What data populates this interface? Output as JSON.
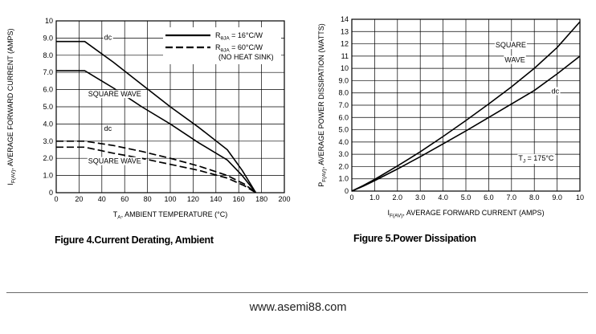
{
  "figures": [
    {
      "caption": "Figure 4.Current  Derating, Ambient"
    },
    {
      "caption": "Figure 5.Power  Dissipation"
    }
  ],
  "footer": {
    "text": "www.asemi88.com"
  },
  "chart_data": [
    {
      "type": "line",
      "title": "",
      "xlabel_main": "T",
      "xlabel_sub": "A",
      "xlabel_rest": ", AMBIENT TEMPERATURE (°C)",
      "ylabel_main": "I",
      "ylabel_sub": "F(AV)",
      "ylabel_rest": ", AVERAGE FORWARD CURRENT (AMPS)",
      "xlim": [
        0,
        200
      ],
      "ylim": [
        0,
        10
      ],
      "x_ticks": [
        0,
        20,
        40,
        60,
        80,
        100,
        120,
        140,
        160,
        180,
        200
      ],
      "y_ticks": [
        0,
        1.0,
        2.0,
        3.0,
        4.0,
        5.0,
        6.0,
        7.0,
        8.0,
        9.0,
        10
      ],
      "x_tick_labels": [
        "0",
        "20",
        "40",
        "60",
        "80",
        "100",
        "120",
        "140",
        "160",
        "180",
        "200"
      ],
      "y_tick_labels": [
        "0",
        "1.0",
        "2.0",
        "3.0",
        "4.0",
        "5.0",
        "6.0",
        "7.0",
        "8.0",
        "9.0",
        "10"
      ],
      "grid": true,
      "legend": {
        "placement": "top-right",
        "entries": [
          {
            "style": "solid",
            "label_main": "R",
            "label_sub": "θJA",
            "label_rest": " = 16°C/W",
            "note": ""
          },
          {
            "style": "dashed",
            "label_main": "R",
            "label_sub": "θJA",
            "label_rest": " = 60°C/W",
            "note": "(NO HEAT SINK)"
          }
        ]
      },
      "series": [
        {
          "style": "solid",
          "points": [
            [
              0,
              8.8
            ],
            [
              25,
              8.8
            ],
            [
              50,
              7.6
            ],
            [
              75,
              6.3
            ],
            [
              100,
              5.0
            ],
            [
              125,
              3.8
            ],
            [
              150,
              2.5
            ],
            [
              163,
              1.3
            ],
            [
              175,
              0
            ]
          ]
        },
        {
          "style": "solid",
          "points": [
            [
              0,
              7.1
            ],
            [
              25,
              7.1
            ],
            [
              50,
              6.1
            ],
            [
              75,
              5.0
            ],
            [
              100,
              4.0
            ],
            [
              125,
              2.9
            ],
            [
              150,
              1.9
            ],
            [
              163,
              1.0
            ],
            [
              175,
              0
            ]
          ]
        },
        {
          "style": "dashed",
          "points": [
            [
              0,
              3.0
            ],
            [
              25,
              3.0
            ],
            [
              50,
              2.75
            ],
            [
              75,
              2.4
            ],
            [
              100,
              2.0
            ],
            [
              125,
              1.55
            ],
            [
              150,
              1.0
            ],
            [
              165,
              0.5
            ],
            [
              175,
              0
            ]
          ]
        },
        {
          "style": "dashed",
          "points": [
            [
              0,
              2.65
            ],
            [
              25,
              2.65
            ],
            [
              50,
              2.3
            ],
            [
              75,
              2.0
            ],
            [
              100,
              1.65
            ],
            [
              125,
              1.3
            ],
            [
              150,
              0.85
            ],
            [
              165,
              0.4
            ],
            [
              175,
              0
            ]
          ]
        }
      ],
      "annotations": [
        {
          "text": "dc",
          "x": 42,
          "y": 8.9
        },
        {
          "text": "SQUARE WAVE",
          "x": 28,
          "y": 5.6
        },
        {
          "text": "dc",
          "x": 42,
          "y": 3.6
        },
        {
          "text": "SQUARE WAVE",
          "x": 28,
          "y": 1.7
        }
      ]
    },
    {
      "type": "line",
      "title": "",
      "xlabel_main": "I",
      "xlabel_sub": "F(AV)",
      "xlabel_rest": ", AVERAGE FORWARD CURRENT (AMPS)",
      "ylabel_main": "P",
      "ylabel_sub": "F(AV)",
      "ylabel_rest": ", AVERAGE POWER DISSIPATION (WATTS)",
      "xlim": [
        0,
        10
      ],
      "ylim": [
        0,
        14
      ],
      "x_ticks": [
        0,
        1,
        2,
        3,
        4,
        5,
        6,
        7,
        8,
        9,
        10
      ],
      "y_ticks": [
        0,
        1,
        2,
        3,
        4,
        5,
        6,
        7,
        8,
        9,
        10,
        11,
        12,
        13,
        14
      ],
      "x_tick_labels": [
        "0",
        "1.0",
        "2.0",
        "3.0",
        "4.0",
        "5.0",
        "6.0",
        "7.0",
        "8.0",
        "9.0",
        "10"
      ],
      "y_tick_labels": [
        "0",
        "1.0",
        "2.0",
        "3.0",
        "4.0",
        "5.0",
        "6.0",
        "7.0",
        "8.0",
        "9.0",
        "10",
        "11",
        "12",
        "13",
        "14"
      ],
      "grid": true,
      "series": [
        {
          "style": "solid",
          "points": [
            [
              0,
              0
            ],
            [
              0.5,
              0.45
            ],
            [
              1,
              0.95
            ],
            [
              2,
              2.05
            ],
            [
              3,
              3.2
            ],
            [
              4,
              4.45
            ],
            [
              5,
              5.75
            ],
            [
              6,
              7.1
            ],
            [
              7,
              8.5
            ],
            [
              8,
              10.0
            ],
            [
              9,
              11.7
            ],
            [
              10,
              13.8
            ]
          ]
        },
        {
          "style": "solid",
          "points": [
            [
              0,
              0
            ],
            [
              0.5,
              0.4
            ],
            [
              1,
              0.85
            ],
            [
              2,
              1.8
            ],
            [
              3,
              2.8
            ],
            [
              4,
              3.85
            ],
            [
              5,
              4.9
            ],
            [
              6,
              6.0
            ],
            [
              7,
              7.1
            ],
            [
              8,
              8.2
            ],
            [
              9,
              9.55
            ],
            [
              10,
              11.0
            ]
          ]
        }
      ],
      "annotations": [
        {
          "text": "SQUARE",
          "x": 6.3,
          "y": 11.7
        },
        {
          "text": "WAVE",
          "x": 6.7,
          "y": 10.5
        },
        {
          "text": "dc",
          "x": 8.75,
          "y": 7.95
        }
      ],
      "tj_label": {
        "main": "T",
        "sub": "J",
        "rest": " = 175°C",
        "x": 7.3,
        "y": 2.5
      }
    }
  ]
}
